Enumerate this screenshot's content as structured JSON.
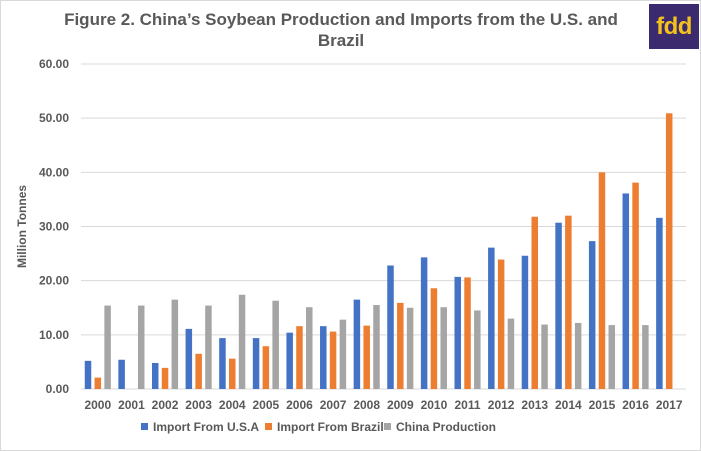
{
  "figure": {
    "title": "Figure 2. China’s Soybean Production and Imports from the U.S. and Brazil",
    "logo_text": "fdd",
    "logo_bg": "#3b2a6e",
    "logo_fg": "#f4c21b"
  },
  "chart_data": {
    "type": "bar",
    "title": "Figure 2. China’s Soybean Production and Imports from the U.S. and Brazil",
    "xlabel": "",
    "ylabel": "Million Tonnes",
    "ylim": [
      0,
      60
    ],
    "yticks": [
      "0.00",
      "10.00",
      "20.00",
      "30.00",
      "40.00",
      "50.00",
      "60.00"
    ],
    "grid": true,
    "legend_position": "bottom",
    "categories": [
      "2000",
      "2001",
      "2002",
      "2003",
      "2004",
      "2005",
      "2006",
      "2007",
      "2008",
      "2009",
      "2010",
      "2011",
      "2012",
      "2013",
      "2014",
      "2015",
      "2016",
      "2017"
    ],
    "series": [
      {
        "name": "Import From U.S.A",
        "color": "#4472c4",
        "values": [
          5.2,
          5.4,
          4.8,
          11.1,
          9.4,
          9.4,
          10.4,
          11.6,
          16.5,
          22.8,
          24.3,
          20.7,
          26.1,
          24.6,
          30.7,
          27.3,
          36.1,
          31.6
        ]
      },
      {
        "name": "Import From Brazil",
        "color": "#ed7d31",
        "values": [
          2.1,
          0,
          3.9,
          6.5,
          5.6,
          7.9,
          11.6,
          10.6,
          11.7,
          15.9,
          18.6,
          20.6,
          23.9,
          31.8,
          32.0,
          40.0,
          38.1,
          50.9
        ]
      },
      {
        "name": "China Production",
        "color": "#a5a5a5",
        "values": [
          15.4,
          15.4,
          16.5,
          15.4,
          17.4,
          16.3,
          15.1,
          12.8,
          15.5,
          15.0,
          15.1,
          14.5,
          13.0,
          11.9,
          12.2,
          11.8,
          11.8,
          null
        ]
      }
    ]
  }
}
